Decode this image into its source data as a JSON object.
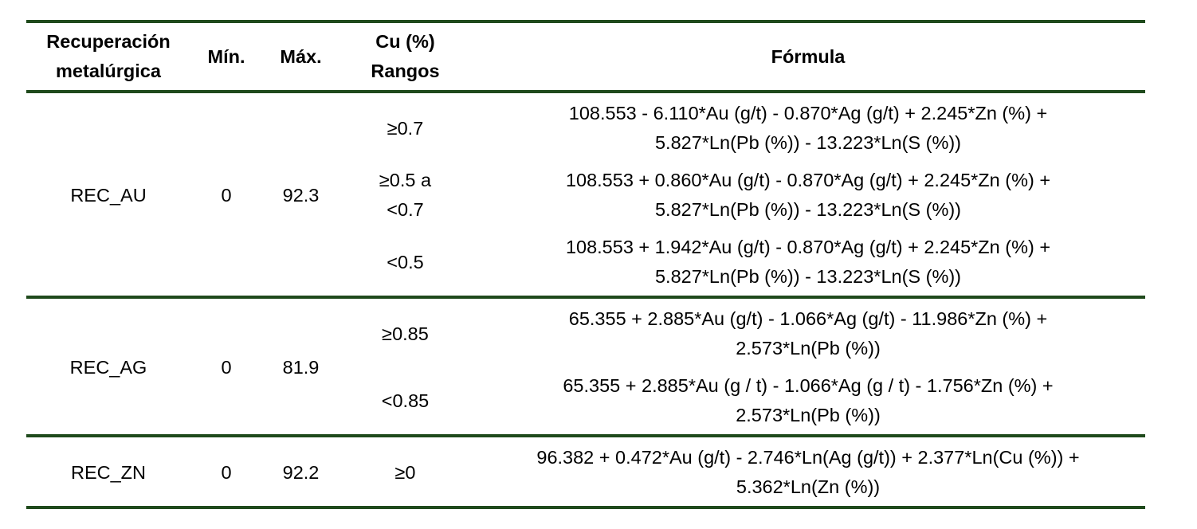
{
  "headers": {
    "recovery_line1": "Recuperación",
    "recovery_line2": "metalúrgica",
    "min": "Mín.",
    "max": "Máx.",
    "cu_line1": "Cu (%)",
    "cu_line2": "Rangos",
    "formula": "Fórmula"
  },
  "groups": [
    {
      "name": "REC_AU",
      "min": "0",
      "max": "92.3",
      "rows": [
        {
          "range_line1": "≥0.7",
          "range_line2": "",
          "formula_line1": "108.553 - 6.110*Au (g/t) - 0.870*Ag (g/t) + 2.245*Zn (%) +",
          "formula_line2": "5.827*Ln(Pb (%)) - 13.223*Ln(S (%))"
        },
        {
          "range_line1": "≥0.5 a",
          "range_line2": "<0.7",
          "formula_line1": "108.553 + 0.860*Au (g/t) - 0.870*Ag (g/t) + 2.245*Zn (%) +",
          "formula_line2": "5.827*Ln(Pb (%)) - 13.223*Ln(S (%))"
        },
        {
          "range_line1": "<0.5",
          "range_line2": "",
          "formula_line1": "108.553 + 1.942*Au (g/t) - 0.870*Ag (g/t) + 2.245*Zn (%) +",
          "formula_line2": "5.827*Ln(Pb (%)) - 13.223*Ln(S (%))"
        }
      ]
    },
    {
      "name": "REC_AG",
      "min": "0",
      "max": "81.9",
      "rows": [
        {
          "range_line1": "≥0.85",
          "range_line2": "",
          "formula_line1": "65.355 + 2.885*Au (g/t) - 1.066*Ag (g/t) - 11.986*Zn (%) +",
          "formula_line2": "2.573*Ln(Pb (%))"
        },
        {
          "range_line1": "<0.85",
          "range_line2": "",
          "formula_line1": "65.355 + 2.885*Au (g / t) - 1.066*Ag (g / t) - 1.756*Zn (%) +",
          "formula_line2": "2.573*Ln(Pb (%))"
        }
      ]
    },
    {
      "name": "REC_ZN",
      "min": "0",
      "max": "92.2",
      "rows": [
        {
          "range_line1": "≥0",
          "range_line2": "",
          "formula_line1": "96.382 + 0.472*Au (g/t) - 2.746*Ln(Ag (g/t)) + 2.377*Ln(Cu (%)) +",
          "formula_line2": "5.362*Ln(Zn (%))"
        }
      ]
    }
  ]
}
